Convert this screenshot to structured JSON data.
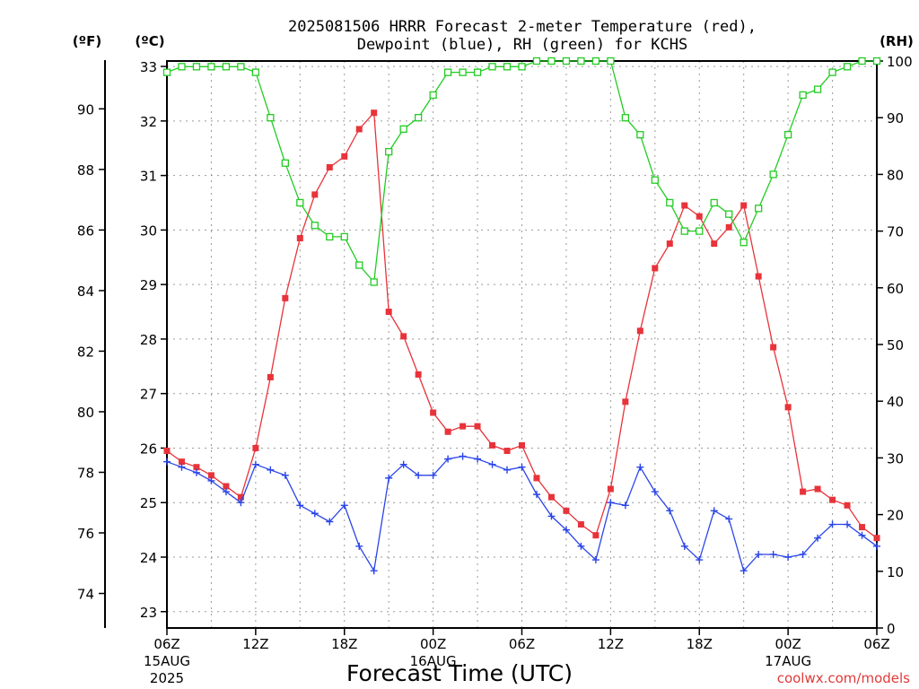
{
  "chart_data": {
    "type": "line",
    "title_line1": "2025081506 HRRR Forecast 2-meter Temperature (red),",
    "title_line2": "Dewpoint (blue), RH (green) for KCHS",
    "unit_f": "(ºF)",
    "unit_c": "(ºC)",
    "unit_rh": "(RH)",
    "xlabel": "Forecast Time (UTC)",
    "credit": "coolwx.com/models",
    "x_hours": [
      0,
      1,
      2,
      3,
      4,
      5,
      6,
      7,
      8,
      9,
      10,
      11,
      12,
      13,
      14,
      15,
      16,
      17,
      18,
      19,
      20,
      21,
      22,
      23,
      24,
      25,
      26,
      27,
      28,
      29,
      30,
      31,
      32,
      33,
      34,
      35,
      36,
      37,
      38,
      39,
      40,
      41,
      42,
      43,
      44,
      45,
      46,
      47,
      48
    ],
    "xlim": [
      0,
      48
    ],
    "ylim_c": [
      22.7,
      33.1
    ],
    "ylim_rh": [
      0,
      100
    ],
    "x_ticks": [
      {
        "hour": 0,
        "label": "06Z",
        "label2": "15AUG",
        "label3": "2025"
      },
      {
        "hour": 6,
        "label": "12Z",
        "label2": "",
        "label3": ""
      },
      {
        "hour": 12,
        "label": "18Z",
        "label2": "",
        "label3": ""
      },
      {
        "hour": 18,
        "label": "00Z",
        "label2": "16AUG",
        "label3": ""
      },
      {
        "hour": 24,
        "label": "06Z",
        "label2": "",
        "label3": ""
      },
      {
        "hour": 30,
        "label": "12Z",
        "label2": "",
        "label3": ""
      },
      {
        "hour": 36,
        "label": "18Z",
        "label2": "",
        "label3": ""
      },
      {
        "hour": 42,
        "label": "00Z",
        "label2": "17AUG",
        "label3": ""
      },
      {
        "hour": 48,
        "label": "06Z",
        "label2": "",
        "label3": ""
      }
    ],
    "c_ticks": [
      23,
      24,
      25,
      26,
      27,
      28,
      29,
      30,
      31,
      32,
      33
    ],
    "f_ticks": [
      74,
      76,
      78,
      80,
      82,
      84,
      86,
      88,
      90
    ],
    "rh_ticks": [
      0,
      10,
      20,
      30,
      40,
      50,
      60,
      70,
      80,
      90,
      100
    ],
    "series": [
      {
        "name": "Temperature",
        "color": "#e8333a",
        "marker": "filled-square",
        "axis": "celsius",
        "values": [
          25.95,
          25.75,
          25.65,
          25.5,
          25.3,
          25.1,
          26.0,
          27.3,
          28.75,
          29.85,
          30.65,
          31.15,
          31.35,
          31.85,
          32.15,
          28.5,
          28.05,
          27.35,
          26.65,
          26.3,
          26.4,
          26.4,
          26.05,
          25.95,
          26.05,
          25.45,
          25.1,
          24.85,
          24.6,
          24.4,
          25.25,
          26.85,
          28.15,
          29.3,
          29.75,
          30.45,
          30.25,
          29.75,
          30.05,
          30.45,
          29.15,
          27.85,
          26.75,
          25.2,
          25.25,
          25.05,
          24.95,
          24.55,
          24.35
        ]
      },
      {
        "name": "Dewpoint",
        "color": "#2a45e8",
        "marker": "plus",
        "axis": "celsius",
        "values": [
          25.75,
          25.65,
          25.55,
          25.4,
          25.2,
          25.0,
          25.7,
          25.6,
          25.5,
          24.95,
          24.8,
          24.65,
          24.95,
          24.2,
          23.75,
          25.45,
          25.7,
          25.5,
          25.5,
          25.8,
          25.85,
          25.8,
          25.7,
          25.6,
          25.65,
          25.15,
          24.75,
          24.5,
          24.2,
          23.95,
          25.0,
          24.95,
          25.65,
          25.2,
          24.85,
          24.2,
          23.95,
          24.85,
          24.7,
          23.75,
          24.05,
          24.05,
          24.0,
          24.05,
          24.35,
          24.6,
          24.6,
          24.4,
          24.2
        ]
      },
      {
        "name": "RH",
        "color": "#22cc22",
        "marker": "open-square",
        "axis": "rh",
        "values": [
          98,
          99,
          99,
          99,
          99,
          99,
          98,
          90,
          82,
          75,
          71,
          69,
          69,
          64,
          61,
          84,
          88,
          90,
          94,
          98,
          98,
          98,
          99,
          99,
          99,
          100,
          100,
          100,
          100,
          100,
          100,
          90,
          87,
          79,
          75,
          70,
          70,
          75,
          73,
          68,
          74,
          80,
          87,
          94,
          95,
          98,
          99,
          100,
          100
        ]
      }
    ]
  }
}
